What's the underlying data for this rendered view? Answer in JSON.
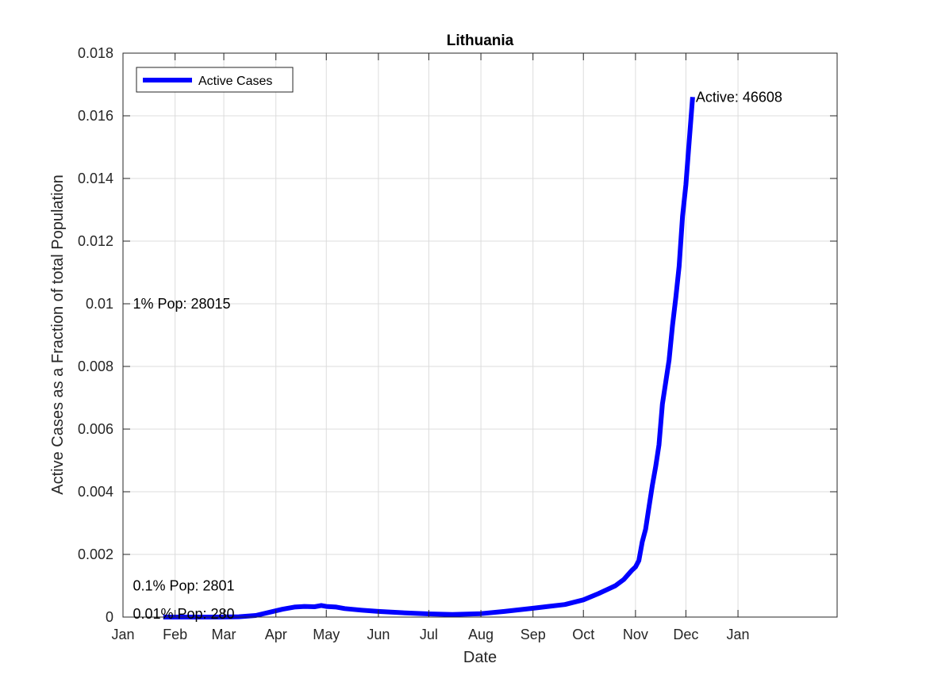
{
  "chart_data": {
    "type": "line",
    "title": "Lithuania",
    "xlabel": "Date",
    "ylabel": "Active Cases as a Fraction of total Population",
    "xlim": [
      "2020-01-01",
      "2021-03-01"
    ],
    "ylim": [
      0,
      0.018
    ],
    "x_ticks": [
      {
        "date": "2020-01-01",
        "label": "Jan"
      },
      {
        "date": "2020-02-01",
        "label": "Feb"
      },
      {
        "date": "2020-03-01",
        "label": "Mar"
      },
      {
        "date": "2020-04-01",
        "label": "Apr"
      },
      {
        "date": "2020-05-01",
        "label": "May"
      },
      {
        "date": "2020-06-01",
        "label": "Jun"
      },
      {
        "date": "2020-07-01",
        "label": "Jul"
      },
      {
        "date": "2020-08-01",
        "label": "Aug"
      },
      {
        "date": "2020-09-01",
        "label": "Sep"
      },
      {
        "date": "2020-10-01",
        "label": "Oct"
      },
      {
        "date": "2020-11-01",
        "label": "Nov"
      },
      {
        "date": "2020-12-01",
        "label": "Dec"
      },
      {
        "date": "2021-01-01",
        "label": "Jan"
      }
    ],
    "y_ticks": [
      {
        "value": 0,
        "label": "0"
      },
      {
        "value": 0.002,
        "label": "0.002"
      },
      {
        "value": 0.004,
        "label": "0.004"
      },
      {
        "value": 0.006,
        "label": "0.006"
      },
      {
        "value": 0.008,
        "label": "0.008"
      },
      {
        "value": 0.01,
        "label": "0.01"
      },
      {
        "value": 0.012,
        "label": "0.012"
      },
      {
        "value": 0.014,
        "label": "0.014"
      },
      {
        "value": 0.016,
        "label": "0.016"
      },
      {
        "value": 0.018,
        "label": "0.018"
      }
    ],
    "grid": true,
    "legend": {
      "position": "top-left",
      "entries": [
        "Active Cases"
      ]
    },
    "series": [
      {
        "name": "Active Cases",
        "color": "#0000ff",
        "points": [
          [
            "2020-01-25",
            0
          ],
          [
            "2020-02-28",
            0
          ],
          [
            "2020-03-10",
            1e-05
          ],
          [
            "2020-03-20",
            5e-05
          ],
          [
            "2020-03-28",
            0.00015
          ],
          [
            "2020-04-05",
            0.00025
          ],
          [
            "2020-04-12",
            0.00032
          ],
          [
            "2020-04-18",
            0.00034
          ],
          [
            "2020-04-24",
            0.00033
          ],
          [
            "2020-04-28",
            0.00037
          ],
          [
            "2020-05-01",
            0.00034
          ],
          [
            "2020-05-07",
            0.00032
          ],
          [
            "2020-05-12",
            0.00027
          ],
          [
            "2020-05-22",
            0.00022
          ],
          [
            "2020-06-01",
            0.00018
          ],
          [
            "2020-06-15",
            0.00014
          ],
          [
            "2020-07-01",
            0.0001
          ],
          [
            "2020-07-15",
            8e-05
          ],
          [
            "2020-08-01",
            0.00011
          ],
          [
            "2020-08-15",
            0.00018
          ],
          [
            "2020-09-01",
            0.00028
          ],
          [
            "2020-09-10",
            0.00034
          ],
          [
            "2020-09-20",
            0.0004
          ],
          [
            "2020-10-01",
            0.00055
          ],
          [
            "2020-10-10",
            0.00075
          ],
          [
            "2020-10-20",
            0.001
          ],
          [
            "2020-10-25",
            0.0012
          ],
          [
            "2020-10-30",
            0.0015
          ],
          [
            "2020-11-01",
            0.0016
          ],
          [
            "2020-11-03",
            0.0018
          ],
          [
            "2020-11-05",
            0.0024
          ],
          [
            "2020-11-07",
            0.0028
          ],
          [
            "2020-11-09",
            0.0035
          ],
          [
            "2020-11-11",
            0.0042
          ],
          [
            "2020-11-13",
            0.0048
          ],
          [
            "2020-11-15",
            0.0055
          ],
          [
            "2020-11-17",
            0.0068
          ],
          [
            "2020-11-19",
            0.0075
          ],
          [
            "2020-11-21",
            0.0082
          ],
          [
            "2020-11-23",
            0.0093
          ],
          [
            "2020-11-25",
            0.0102
          ],
          [
            "2020-11-27",
            0.0112
          ],
          [
            "2020-11-29",
            0.0128
          ],
          [
            "2020-12-01",
            0.0138
          ],
          [
            "2020-12-03",
            0.0152
          ],
          [
            "2020-12-05",
            0.0166
          ]
        ]
      }
    ],
    "annotations": [
      {
        "text": "Active: 46608",
        "x": "2020-12-05",
        "y": 0.0166,
        "anchor": "right-of"
      },
      {
        "text": "1% Pop: 28015",
        "x": "2020-01-05",
        "y": 0.01,
        "anchor": "right-of"
      },
      {
        "text": "0.1% Pop: 2801",
        "x": "2020-01-05",
        "y": 0.001,
        "anchor": "right-of"
      },
      {
        "text": "0.01% Pop: 280",
        "x": "2020-01-05",
        "y": 0.0001,
        "anchor": "right-of"
      }
    ]
  }
}
